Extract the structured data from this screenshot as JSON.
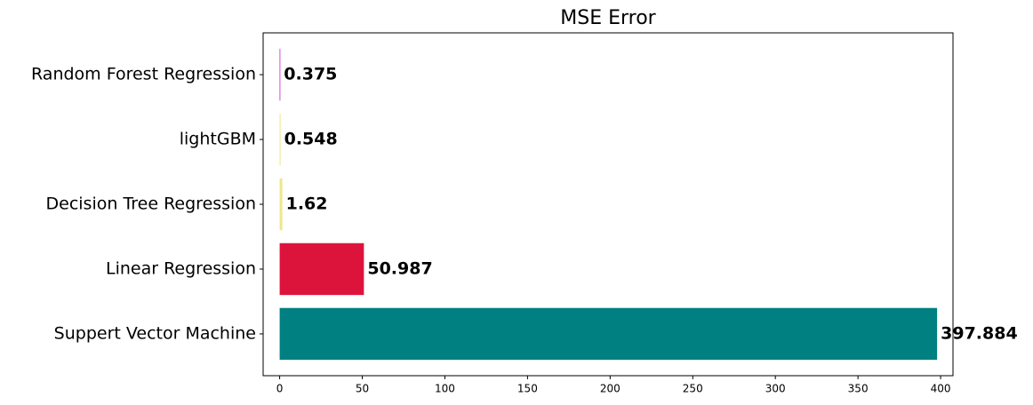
{
  "chart_data": {
    "type": "barh",
    "title": "MSE Error",
    "categories": [
      "Suppert Vector Machine",
      "Linear Regression",
      "Decision Tree Regression",
      "lightGBM",
      "Random Forest Regression"
    ],
    "values": [
      397.884,
      50.987,
      1.62,
      0.548,
      0.375
    ],
    "colors": [
      "#008080",
      "#dc143c",
      "#f0e68c",
      "#f0e68c",
      "#bf00bf"
    ],
    "xlim": [
      -10,
      407.5
    ],
    "xticks": [
      0,
      50,
      100,
      150,
      200,
      250,
      300,
      350,
      400
    ],
    "grid": false
  }
}
